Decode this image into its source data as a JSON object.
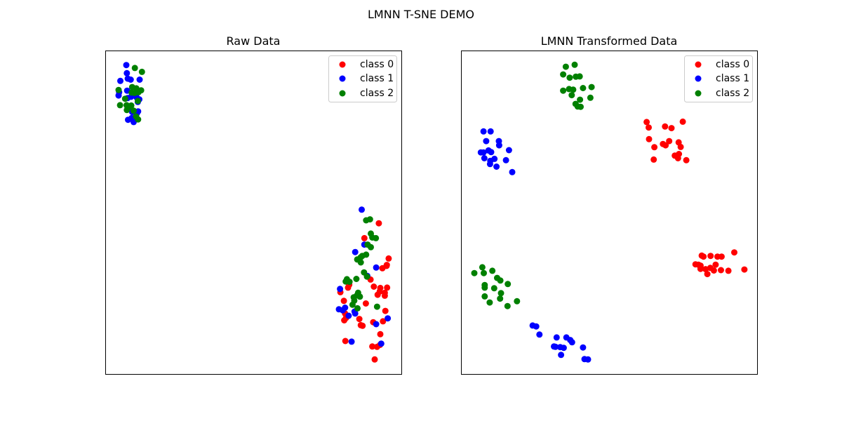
{
  "figure": {
    "suptitle": "LMNN T-SNE DEMO"
  },
  "colors": {
    "class 0": "#ff0000",
    "class 1": "#0000ff",
    "class 2": "#008000"
  },
  "chart_data": [
    {
      "type": "scatter",
      "title": "Raw Data",
      "xlabel": "",
      "ylabel": "",
      "xlim": [
        0,
        100
      ],
      "ylim": [
        0,
        100
      ],
      "grid": false,
      "legend": {
        "position": "upper-right",
        "entries": [
          "class 0",
          "class 1",
          "class 2"
        ]
      },
      "series": [
        {
          "name": "class 0",
          "color": "#ff0000",
          "points": [
            [
              92.4,
              46.6
            ],
            [
              87.5,
              42.0
            ],
            [
              95.7,
              35.7
            ],
            [
              95.0,
              33.4
            ],
            [
              93.6,
              32.7
            ],
            [
              89.6,
              29.2
            ],
            [
              90.7,
              27.0
            ],
            [
              92.9,
              26.6
            ],
            [
              92.7,
              25.5
            ],
            [
              94.4,
              24.2
            ],
            [
              92.0,
              24.5
            ],
            [
              94.4,
              25.1
            ],
            [
              95.2,
              26.7
            ],
            [
              95.1,
              33.7
            ],
            [
              82.0,
              26.7
            ],
            [
              79.4,
              25.3
            ],
            [
              80.6,
              22.6
            ],
            [
              82.4,
              27.6
            ],
            [
              88.0,
              21.8
            ],
            [
              81.0,
              18.7
            ],
            [
              81.3,
              17.3
            ],
            [
              80.7,
              16.6
            ],
            [
              85.8,
              17.0
            ],
            [
              90.5,
              16.0
            ],
            [
              93.8,
              16.3
            ],
            [
              94.6,
              19.5
            ],
            [
              86.9,
              14.9
            ],
            [
              86.3,
              15.1
            ],
            [
              92.9,
              12.3
            ],
            [
              81.1,
              10.2
            ],
            [
              90.2,
              8.5
            ],
            [
              91.8,
              8.4
            ],
            [
              92.8,
              9.0
            ],
            [
              91.0,
              4.5
            ]
          ]
        },
        {
          "name": "class 1",
          "color": "#0000ff",
          "points": [
            [
              7.1,
              95.5
            ],
            [
              7.3,
              93.0
            ],
            [
              5.1,
              90.6
            ],
            [
              7.6,
              91.3
            ],
            [
              8.6,
              91.0
            ],
            [
              11.6,
              91.0
            ],
            [
              4.7,
              87.1
            ],
            [
              4.5,
              86.1
            ],
            [
              7.4,
              87.6
            ],
            [
              7.5,
              85.3
            ],
            [
              8.7,
              85.7
            ],
            [
              10.6,
              85.5
            ],
            [
              11.5,
              84.9
            ],
            [
              11.0,
              84.1
            ],
            [
              7.8,
              82.2
            ],
            [
              11.1,
              81.2
            ],
            [
              10.7,
              80.6
            ],
            [
              9.1,
              81.0
            ],
            [
              8.9,
              79.1
            ],
            [
              7.7,
              78.6
            ],
            [
              9.6,
              77.9
            ],
            [
              86.6,
              50.8
            ],
            [
              87.5,
              40.0
            ],
            [
              84.4,
              37.7
            ],
            [
              91.5,
              32.9
            ],
            [
              88.5,
              30.3
            ],
            [
              79.3,
              26.3
            ],
            [
              81.0,
              20.5
            ],
            [
              84.2,
              19.3
            ],
            [
              82.2,
              18.0
            ],
            [
              80.2,
              19.7
            ],
            [
              84.4,
              18.7
            ],
            [
              91.5,
              15.4
            ],
            [
              78.9,
              20.0
            ],
            [
              95.4,
              17.2
            ],
            [
              83.2,
              10.0
            ],
            [
              93.2,
              9.4
            ]
          ]
        },
        {
          "name": "class 2",
          "color": "#008000",
          "points": [
            [
              12.4,
              93.4
            ],
            [
              10.0,
              94.6
            ],
            [
              4.5,
              87.8
            ],
            [
              9.1,
              88.7
            ],
            [
              10.5,
              88.3
            ],
            [
              9.9,
              86.9
            ],
            [
              12.1,
              87.7
            ],
            [
              11.2,
              87.1
            ],
            [
              8.9,
              87.0
            ],
            [
              6.7,
              85.1
            ],
            [
              11.0,
              84.4
            ],
            [
              5.0,
              83.1
            ],
            [
              7.2,
              83.1
            ],
            [
              8.8,
              83.0
            ],
            [
              8.4,
              82.8
            ],
            [
              7.3,
              81.6
            ],
            [
              9.6,
              81.4
            ],
            [
              10.4,
              79.6
            ],
            [
              11.1,
              78.7
            ],
            [
              88.1,
              47.5
            ],
            [
              89.4,
              47.8
            ],
            [
              91.4,
              42.0
            ],
            [
              85.1,
              35.4
            ],
            [
              86.3,
              36.1
            ],
            [
              89.7,
              39.2
            ],
            [
              88.6,
              40.0
            ],
            [
              89.7,
              43.4
            ],
            [
              90.2,
              42.2
            ],
            [
              88.1,
              36.9
            ],
            [
              86.8,
              36.5
            ],
            [
              86.3,
              34.5
            ],
            [
              87.4,
              31.4
            ],
            [
              84.8,
              29.4
            ],
            [
              82.5,
              28.5
            ],
            [
              81.2,
              28.6
            ],
            [
              85.4,
              25.1
            ],
            [
              81.6,
              29.3
            ],
            [
              91.8,
              20.8
            ],
            [
              86.0,
              23.9
            ],
            [
              85.0,
              24.3
            ],
            [
              83.9,
              23.7
            ],
            [
              84.1,
              22.7
            ],
            [
              83.5,
              21.4
            ],
            [
              85.2,
              20.3
            ],
            [
              88.4,
              30.1
            ]
          ]
        }
      ]
    },
    {
      "type": "scatter",
      "title": "LMNN Transformed Data",
      "xlabel": "",
      "ylabel": "",
      "xlim": [
        0,
        100
      ],
      "ylim": [
        0,
        100
      ],
      "grid": false,
      "legend": {
        "position": "upper-right",
        "entries": [
          "class 0",
          "class 1",
          "class 2"
        ]
      },
      "series": [
        {
          "name": "class 0",
          "color": "#ff0000",
          "points": [
            [
              62.7,
              77.9
            ],
            [
              63.4,
              76.2
            ],
            [
              68.9,
              76.5
            ],
            [
              71.1,
              76.0
            ],
            [
              74.9,
              78.0
            ],
            [
              70.3,
              72.0
            ],
            [
              68.2,
              71.1
            ],
            [
              73.5,
              71.6
            ],
            [
              74.2,
              70.2
            ],
            [
              73.6,
              68.0
            ],
            [
              63.5,
              72.6
            ],
            [
              65.3,
              70.1
            ],
            [
              69.1,
              70.7
            ],
            [
              72.2,
              67.5
            ],
            [
              76.1,
              66.1
            ],
            [
              73.3,
              66.7
            ],
            [
              65.1,
              66.3
            ],
            [
              81.3,
              36.6
            ],
            [
              81.9,
              36.3
            ],
            [
              84.3,
              36.5
            ],
            [
              88.0,
              36.3
            ],
            [
              86.6,
              36.3
            ],
            [
              92.3,
              37.6
            ],
            [
              80.9,
              33.5
            ],
            [
              80.9,
              32.5
            ],
            [
              82.6,
              32.4
            ],
            [
              79.2,
              33.9
            ],
            [
              80.2,
              33.8
            ],
            [
              83.2,
              30.9
            ],
            [
              84.2,
              32.8
            ],
            [
              85.4,
              32.0
            ],
            [
              86.0,
              33.8
            ],
            [
              87.8,
              32.1
            ],
            [
              90.3,
              31.9
            ],
            [
              95.7,
              32.3
            ]
          ]
        },
        {
          "name": "class 1",
          "color": "#0000ff",
          "points": [
            [
              7.6,
              75.0
            ],
            [
              10.0,
              75.0
            ],
            [
              8.5,
              72.0
            ],
            [
              12.8,
              72.0
            ],
            [
              12.9,
              70.7
            ],
            [
              9.3,
              69.1
            ],
            [
              10.2,
              68.6
            ],
            [
              11.3,
              66.5
            ],
            [
              7.6,
              68.5
            ],
            [
              7.9,
              66.7
            ],
            [
              9.9,
              65.9
            ],
            [
              16.2,
              69.2
            ],
            [
              6.7,
              68.5
            ],
            [
              15.2,
              66.1
            ],
            [
              9.8,
              64.9
            ],
            [
              12.0,
              64.1
            ],
            [
              17.3,
              62.4
            ],
            [
              24.2,
              15.0
            ],
            [
              25.4,
              14.7
            ],
            [
              26.5,
              12.2
            ],
            [
              32.3,
              11.3
            ],
            [
              35.6,
              11.3
            ],
            [
              36.9,
              10.5
            ],
            [
              37.5,
              9.8
            ],
            [
              31.4,
              8.5
            ],
            [
              31.9,
              8.4
            ],
            [
              33.5,
              8.3
            ],
            [
              34.7,
              8.1
            ],
            [
              41.2,
              8.2
            ],
            [
              33.8,
              5.9
            ],
            [
              41.7,
              4.6
            ],
            [
              42.9,
              4.5
            ]
          ]
        },
        {
          "name": "class 2",
          "color": "#008000",
          "points": [
            [
              38.4,
              95.6
            ],
            [
              35.4,
              95.0
            ],
            [
              34.5,
              92.6
            ],
            [
              36.7,
              91.6
            ],
            [
              38.8,
              91.9
            ],
            [
              40.1,
              92.0
            ],
            [
              44.1,
              88.7
            ],
            [
              41.2,
              88.4
            ],
            [
              36.5,
              88.1
            ],
            [
              37.9,
              87.9
            ],
            [
              34.5,
              87.6
            ],
            [
              37.4,
              86.2
            ],
            [
              43.7,
              85.4
            ],
            [
              40.2,
              84.8
            ],
            [
              38.7,
              83.5
            ],
            [
              39.4,
              82.7
            ],
            [
              40.4,
              82.6
            ],
            [
              7.2,
              33.0
            ],
            [
              4.5,
              31.2
            ],
            [
              7.7,
              31.2
            ],
            [
              10.6,
              31.9
            ],
            [
              12.2,
              29.7
            ],
            [
              13.3,
              28.9
            ],
            [
              15.8,
              27.8
            ],
            [
              8.0,
              27.5
            ],
            [
              8.0,
              26.7
            ],
            [
              11.2,
              26.5
            ],
            [
              13.5,
              25.0
            ],
            [
              8.0,
              24.0
            ],
            [
              13.2,
              23.3
            ],
            [
              9.7,
              22.1
            ],
            [
              18.9,
              22.5
            ],
            [
              15.7,
              21.0
            ]
          ]
        }
      ]
    }
  ]
}
